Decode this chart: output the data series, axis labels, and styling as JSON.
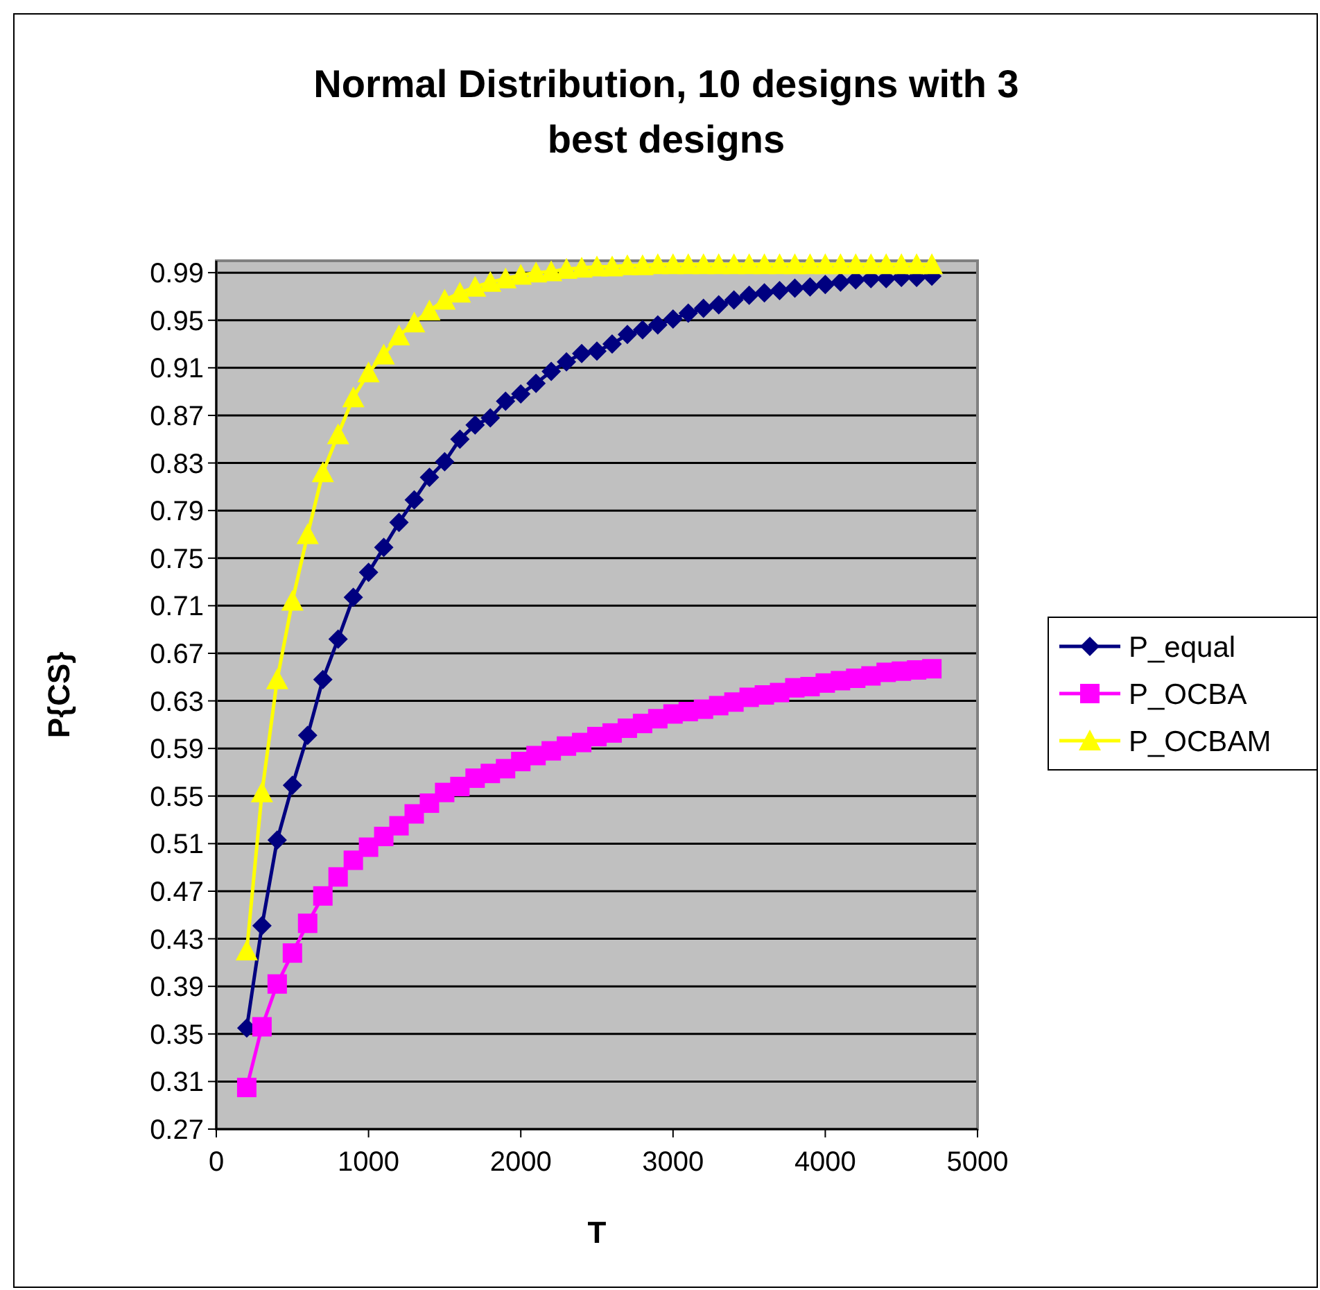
{
  "chart_data": {
    "type": "line",
    "title": "Normal Distribution, 10 designs with 3 best designs",
    "xlabel": "T",
    "ylabel": "P{CS}",
    "x": [
      200,
      300,
      400,
      500,
      600,
      700,
      800,
      900,
      1000,
      1100,
      1200,
      1300,
      1400,
      1500,
      1600,
      1700,
      1800,
      1900,
      2000,
      2100,
      2200,
      2300,
      2400,
      2500,
      2600,
      2700,
      2800,
      2900,
      3000,
      3100,
      3200,
      3300,
      3400,
      3500,
      3600,
      3700,
      3800,
      3900,
      4000,
      4100,
      4200,
      4300,
      4400,
      4500,
      4600,
      4700
    ],
    "series": [
      {
        "name": "P_equal",
        "color": "#000080",
        "marker": "diamond",
        "values": [
          0.355,
          0.441,
          0.513,
          0.559,
          0.601,
          0.648,
          0.682,
          0.717,
          0.738,
          0.759,
          0.78,
          0.799,
          0.818,
          0.831,
          0.85,
          0.862,
          0.868,
          0.882,
          0.888,
          0.897,
          0.907,
          0.915,
          0.922,
          0.924,
          0.93,
          0.938,
          0.942,
          0.946,
          0.951,
          0.956,
          0.96,
          0.963,
          0.967,
          0.971,
          0.973,
          0.975,
          0.977,
          0.978,
          0.98,
          0.982,
          0.984,
          0.985,
          0.985,
          0.986,
          0.986,
          0.987
        ]
      },
      {
        "name": "P_OCBA",
        "color": "#ff00ff",
        "marker": "square",
        "values": [
          0.305,
          0.356,
          0.392,
          0.418,
          0.443,
          0.466,
          0.482,
          0.496,
          0.507,
          0.516,
          0.525,
          0.535,
          0.544,
          0.553,
          0.558,
          0.565,
          0.569,
          0.573,
          0.579,
          0.584,
          0.588,
          0.592,
          0.595,
          0.6,
          0.603,
          0.607,
          0.611,
          0.615,
          0.619,
          0.621,
          0.623,
          0.626,
          0.629,
          0.633,
          0.635,
          0.637,
          0.641,
          0.642,
          0.645,
          0.647,
          0.649,
          0.651,
          0.654,
          0.655,
          0.656,
          0.657
        ]
      },
      {
        "name": "P_OCBAM",
        "color": "#ffff00",
        "marker": "triangle",
        "values": [
          0.42,
          0.553,
          0.648,
          0.714,
          0.77,
          0.822,
          0.854,
          0.885,
          0.906,
          0.921,
          0.937,
          0.948,
          0.958,
          0.967,
          0.973,
          0.978,
          0.982,
          0.985,
          0.988,
          0.99,
          0.991,
          0.993,
          0.994,
          0.995,
          0.995,
          0.996,
          0.996,
          0.997,
          0.997,
          0.997,
          0.997,
          0.997,
          0.997,
          0.997,
          0.997,
          0.997,
          0.997,
          0.997,
          0.997,
          0.997,
          0.997,
          0.997,
          0.997,
          0.997,
          0.997,
          0.997
        ]
      }
    ],
    "xlim": [
      0,
      5000
    ],
    "xticks": [
      0,
      1000,
      2000,
      3000,
      4000,
      5000
    ],
    "ylim": [
      0.27,
      1.0
    ],
    "yticks": [
      0.27,
      0.31,
      0.35,
      0.39,
      0.43,
      0.47,
      0.51,
      0.55,
      0.59,
      0.63,
      0.67,
      0.71,
      0.75,
      0.79,
      0.83,
      0.87,
      0.91,
      0.95,
      0.99
    ],
    "grid": "y",
    "legend": "right"
  }
}
